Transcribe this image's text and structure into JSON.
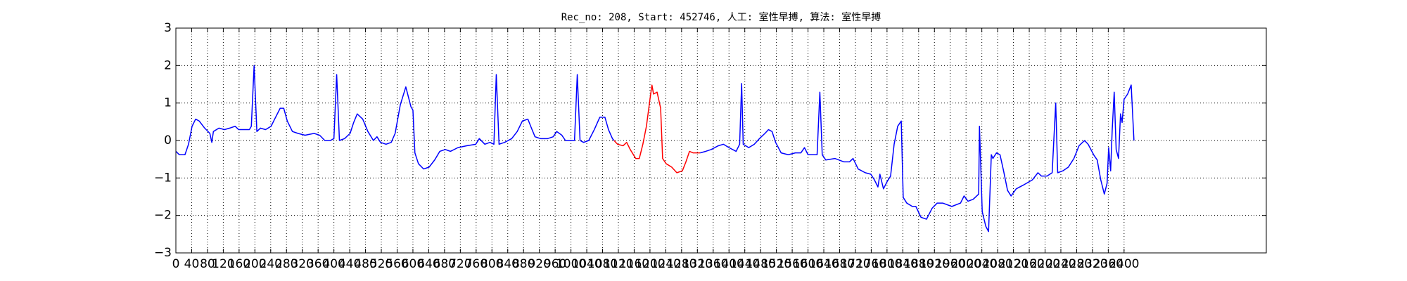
{
  "chart_data": {
    "type": "line",
    "title": "Rec_no: 208, Start: 452746, 人工: 室性早搏, 算法: 室性早搏",
    "xlim": [
      0,
      2760
    ],
    "ylim": [
      -3,
      3
    ],
    "xticks": [
      0,
      40,
      80,
      120,
      160,
      200,
      240,
      280,
      320,
      360,
      400,
      440,
      480,
      520,
      560,
      600,
      640,
      680,
      720,
      760,
      800,
      840,
      880,
      920,
      960,
      1000,
      1040,
      1080,
      1120,
      1160,
      1200,
      1240,
      1280,
      1320,
      1360,
      1400,
      1440,
      1480,
      1520,
      1560,
      1600,
      1640,
      1680,
      1720,
      1760,
      1800,
      1840,
      1880,
      1920,
      1960,
      2000,
      2040,
      2080,
      2120,
      2160,
      2200,
      2240,
      2280,
      2320,
      2360,
      2400
    ],
    "yticks": [
      {
        "value": -3,
        "label": "−3"
      },
      {
        "value": -2,
        "label": "−2"
      },
      {
        "value": -1,
        "label": "−1"
      },
      0,
      1,
      2,
      3
    ],
    "grid": true,
    "series": [
      {
        "color": "#0000ff",
        "x": [
          0,
          9,
          23,
          32,
          41,
          50,
          59,
          73,
          86,
          91,
          95,
          109,
          123,
          136,
          150,
          159,
          173,
          186,
          191,
          198,
          205,
          214,
          227,
          241,
          250,
          264,
          273,
          282,
          295,
          309,
          327,
          350,
          364,
          377,
          391,
          400,
          407,
          414,
          427,
          441,
          450,
          459,
          473,
          486,
          500,
          509,
          518,
          532,
          545,
          555,
          568,
          582,
          595,
          600,
          605,
          614,
          627,
          641,
          655,
          668,
          682,
          695,
          714,
          736,
          759,
          768,
          782,
          795,
          805,
          811,
          818,
          832,
          850,
          864,
          877,
          891,
          900,
          909,
          923,
          941,
          955,
          964,
          977,
          986,
          1000,
          1009,
          1016,
          1023,
          1032,
          1045,
          1059,
          1073,
          1086,
          1095,
          1105,
          1109
        ],
        "values": [
          -0.29,
          -0.38,
          -0.38,
          -0.1,
          0.38,
          0.57,
          0.52,
          0.33,
          0.19,
          -0.05,
          0.24,
          0.33,
          0.29,
          0.33,
          0.38,
          0.29,
          0.29,
          0.29,
          0.38,
          2.0,
          0.24,
          0.33,
          0.29,
          0.38,
          0.57,
          0.86,
          0.86,
          0.52,
          0.24,
          0.19,
          0.14,
          0.19,
          0.14,
          0,
          0,
          0.05,
          1.76,
          0,
          0.05,
          0.19,
          0.48,
          0.71,
          0.57,
          0.24,
          0,
          0.1,
          -0.05,
          -0.1,
          -0.05,
          0.19,
          0.95,
          1.43,
          0.9,
          0.81,
          -0.33,
          -0.62,
          -0.76,
          -0.71,
          -0.52,
          -0.29,
          -0.24,
          -0.29,
          -0.19,
          -0.14,
          -0.1,
          0.05,
          -0.1,
          -0.05,
          -0.1,
          1.76,
          -0.1,
          -0.05,
          0.05,
          0.24,
          0.52,
          0.57,
          0.33,
          0.1,
          0.05,
          0.05,
          0.1,
          0.24,
          0.14,
          0,
          0,
          0,
          1.76,
          0,
          -0.05,
          0,
          0.29,
          0.62,
          0.62,
          0.29,
          0.05,
          0
        ]
      },
      {
        "color": "#ff0000",
        "x": [
          1109,
          1118,
          1132,
          1141,
          1150,
          1164,
          1173,
          1182,
          1191,
          1200,
          1205,
          1209,
          1218,
          1227,
          1232,
          1241,
          1255,
          1268,
          1282,
          1291,
          1300,
          1309,
          1318,
          1327
        ],
        "values": [
          0,
          -0.1,
          -0.14,
          -0.05,
          -0.24,
          -0.48,
          -0.48,
          -0.1,
          0.38,
          1.1,
          1.48,
          1.24,
          1.29,
          0.86,
          -0.48,
          -0.62,
          -0.71,
          -0.86,
          -0.81,
          -0.57,
          -0.29,
          -0.33,
          -0.33,
          -0.33
        ]
      },
      {
        "color": "#0000ff",
        "x": [
          1327,
          1341,
          1355,
          1373,
          1386,
          1400,
          1418,
          1427,
          1432,
          1436,
          1450,
          1464,
          1477,
          1491,
          1500,
          1509,
          1518,
          1532,
          1550,
          1568,
          1582,
          1591,
          1600,
          1623,
          1630,
          1636,
          1645,
          1668,
          1691,
          1705,
          1714,
          1727,
          1745,
          1759,
          1768,
          1777,
          1782,
          1791,
          1800,
          1809,
          1818,
          1827,
          1836,
          1841,
          1850,
          1864,
          1873,
          1886,
          1900,
          1914,
          1927,
          1941,
          1964,
          1986,
          1995,
          2005,
          2018,
          2032,
          2034,
          2041,
          2050,
          2057,
          2064,
          2068,
          2077,
          2086,
          2095,
          2105,
          2114,
          2127,
          2145,
          2168,
          2182,
          2191,
          2205,
          2218,
          2227,
          2232,
          2245,
          2259,
          2273,
          2286,
          2300,
          2309,
          2323,
          2332,
          2341,
          2350,
          2357,
          2361,
          2366,
          2370,
          2375,
          2380,
          2386,
          2391,
          2395,
          2400,
          2409,
          2418,
          2425
        ],
        "values": [
          -0.33,
          -0.29,
          -0.24,
          -0.14,
          -0.1,
          -0.19,
          -0.29,
          -0.1,
          1.52,
          -0.1,
          -0.19,
          -0.1,
          0.05,
          0.19,
          0.29,
          0.24,
          -0.05,
          -0.33,
          -0.38,
          -0.33,
          -0.33,
          -0.19,
          -0.38,
          -0.38,
          1.29,
          -0.38,
          -0.52,
          -0.48,
          -0.57,
          -0.57,
          -0.48,
          -0.76,
          -0.86,
          -0.9,
          -1.05,
          -1.24,
          -0.9,
          -1.29,
          -1.1,
          -0.95,
          -0.1,
          0.38,
          0.52,
          -1.52,
          -1.67,
          -1.76,
          -1.76,
          -2.05,
          -2.1,
          -1.81,
          -1.67,
          -1.67,
          -1.76,
          -1.67,
          -1.48,
          -1.62,
          -1.57,
          -1.43,
          0.38,
          -1.9,
          -2.29,
          -2.43,
          -0.38,
          -0.48,
          -0.33,
          -0.38,
          -0.81,
          -1.33,
          -1.48,
          -1.29,
          -1.19,
          -1.05,
          -0.86,
          -0.95,
          -0.95,
          -0.86,
          1.0,
          -0.86,
          -0.81,
          -0.71,
          -0.48,
          -0.14,
          0,
          -0.1,
          -0.38,
          -0.52,
          -1.05,
          -1.43,
          -1.14,
          -0.19,
          -0.81,
          0.29,
          1.29,
          -0.24,
          -0.48,
          0.71,
          0.48,
          1.1,
          1.24,
          1.48,
          0
        ]
      }
    ]
  }
}
